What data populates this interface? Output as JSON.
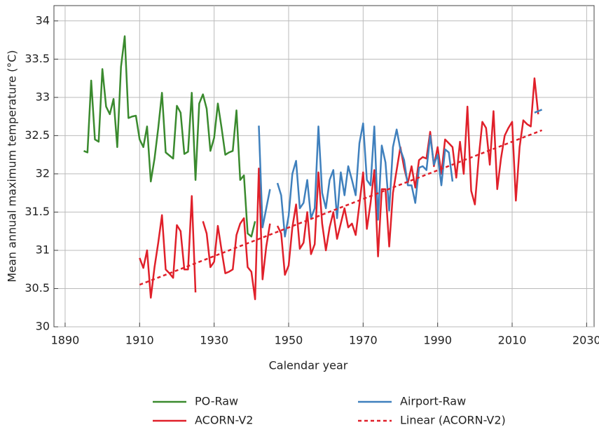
{
  "chart_data": {
    "type": "line",
    "xlabel": "Calendar year",
    "ylabel": "Mean annual maximum temperature (°C)",
    "xlim": [
      1887,
      2032
    ],
    "xticks": [
      1890,
      1910,
      1930,
      1950,
      1970,
      1990,
      2010,
      2030
    ],
    "ylim": [
      30,
      34.2
    ],
    "yticks": [
      30,
      30.5,
      31,
      31.5,
      32,
      32.5,
      33,
      33.5,
      34
    ],
    "grid": true,
    "legend": "bottom",
    "series": [
      {
        "name": "PO-Raw",
        "color": "#3a8a2e",
        "dashed": false,
        "x": [
          1895,
          1896,
          1897,
          1898,
          1899,
          1900,
          1901,
          1902,
          1903,
          1904,
          1905,
          1906,
          1907,
          1908,
          1909,
          1910,
          1911,
          1912,
          1913,
          1914,
          1915,
          1916,
          1917,
          1918,
          1919,
          1920,
          1921,
          1922,
          1923,
          1924,
          1925,
          1926,
          1927,
          1928,
          1929,
          1930,
          1931,
          1932,
          1933,
          1934,
          1935,
          1936,
          1937,
          1938,
          1939,
          1940,
          1941
        ],
        "values": [
          32.3,
          32.28,
          33.22,
          32.45,
          32.42,
          33.37,
          32.88,
          32.78,
          32.98,
          32.35,
          33.4,
          33.8,
          32.73,
          32.75,
          32.76,
          32.45,
          32.35,
          32.62,
          31.9,
          32.2,
          32.6,
          33.06,
          32.28,
          32.24,
          32.2,
          32.89,
          32.8,
          32.26,
          32.29,
          33.06,
          31.92,
          32.92,
          33.04,
          32.85,
          32.3,
          32.47,
          32.92,
          32.6,
          32.25,
          32.28,
          32.3,
          32.83,
          31.92,
          31.98,
          31.22,
          31.18,
          31.38
        ]
      },
      {
        "name": "ACORN-V2",
        "color": "#e0202a",
        "dashed": false,
        "x": [
          1910,
          1911,
          1912,
          1913,
          1914,
          1915,
          1916,
          1917,
          1918,
          1919,
          1920,
          1921,
          1922,
          1923,
          1924,
          1925,
          1926,
          1927,
          1928,
          1929,
          1930,
          1931,
          1932,
          1933,
          1934,
          1935,
          1936,
          1937,
          1938,
          1939,
          1940,
          1941,
          1942,
          1943,
          1944,
          1945,
          1946,
          1947,
          1948,
          1949,
          1950,
          1951,
          1952,
          1953,
          1954,
          1955,
          1956,
          1957,
          1958,
          1959,
          1960,
          1961,
          1962,
          1963,
          1964,
          1965,
          1966,
          1967,
          1968,
          1969,
          1970,
          1971,
          1972,
          1973,
          1974,
          1975,
          1976,
          1977,
          1978,
          1979,
          1980,
          1981,
          1982,
          1983,
          1984,
          1985,
          1986,
          1987,
          1988,
          1989,
          1990,
          1991,
          1992,
          1993,
          1994,
          1995,
          1996,
          1997,
          1998,
          1999,
          2000,
          2001,
          2002,
          2003,
          2004,
          2005,
          2006,
          2007,
          2008,
          2009,
          2010,
          2011,
          2012,
          2013,
          2014,
          2015,
          2016,
          2017
        ],
        "values": [
          30.9,
          30.77,
          31.0,
          30.38,
          30.78,
          31.1,
          31.46,
          30.75,
          30.7,
          30.64,
          31.33,
          31.25,
          30.75,
          30.75,
          31.71,
          30.45,
          null,
          31.38,
          31.22,
          30.78,
          30.85,
          31.32,
          31.0,
          30.7,
          30.72,
          30.75,
          31.2,
          31.35,
          31.42,
          30.78,
          30.72,
          30.36,
          32.07,
          30.62,
          31.05,
          31.35,
          null,
          31.32,
          31.22,
          30.68,
          30.8,
          31.3,
          31.6,
          31.02,
          31.1,
          31.5,
          30.95,
          31.08,
          32.02,
          31.35,
          31.0,
          31.3,
          31.5,
          31.15,
          31.35,
          31.55,
          31.3,
          31.35,
          31.2,
          31.6,
          32.02,
          31.28,
          31.62,
          32.05,
          30.92,
          31.8,
          31.8,
          31.05,
          31.75,
          32.05,
          32.35,
          32.08,
          31.88,
          32.1,
          31.82,
          32.18,
          32.22,
          32.2,
          32.55,
          32.1,
          32.35,
          32.0,
          32.45,
          32.4,
          32.35,
          31.95,
          32.42,
          32.0,
          32.88,
          31.78,
          31.6,
          32.2,
          32.68,
          32.6,
          32.12,
          32.82,
          31.8,
          32.2,
          32.5,
          32.6,
          32.68,
          31.65,
          32.35,
          32.7,
          32.65,
          32.62,
          33.25,
          32.78
        ]
      },
      {
        "name": "Airport-Raw",
        "color": "#3f80bd",
        "dashed": false,
        "x": [
          1942,
          1943,
          1944,
          1945,
          1946,
          1947,
          1948,
          1949,
          1950,
          1951,
          1952,
          1953,
          1954,
          1955,
          1956,
          1957,
          1958,
          1959,
          1960,
          1961,
          1962,
          1963,
          1964,
          1965,
          1966,
          1967,
          1968,
          1969,
          1970,
          1971,
          1972,
          1973,
          1974,
          1975,
          1976,
          1977,
          1978,
          1979,
          1980,
          1981,
          1982,
          1983,
          1984,
          1985,
          1986,
          1987,
          1988,
          1989,
          1990,
          1991,
          1992,
          1993,
          1994,
          1995,
          1996,
          1997,
          1998,
          1999,
          2000,
          2001,
          2002,
          2003,
          2004,
          2005,
          2006,
          2007,
          2008,
          2009,
          2010,
          2011,
          2012,
          2013,
          2014,
          2015,
          2016,
          2017,
          2018
        ],
        "values": [
          32.63,
          31.3,
          31.55,
          31.8,
          null,
          31.88,
          31.72,
          31.18,
          31.45,
          32.0,
          32.17,
          31.55,
          31.62,
          31.92,
          31.42,
          31.55,
          32.62,
          31.75,
          31.55,
          31.92,
          32.05,
          31.42,
          32.02,
          31.72,
          32.1,
          31.92,
          31.72,
          32.4,
          32.66,
          31.92,
          31.85,
          32.62,
          31.4,
          32.37,
          32.15,
          31.52,
          32.35,
          32.58,
          32.32,
          32.18,
          31.85,
          31.85,
          31.62,
          32.08,
          32.1,
          32.05,
          32.5,
          32.12,
          32.25,
          31.85,
          32.32,
          32.28,
          31.9,
          null,
          null,
          null,
          null,
          null,
          null,
          null,
          null,
          null,
          null,
          null,
          null,
          null,
          null,
          null,
          null,
          null,
          null,
          null,
          null,
          null,
          32.8,
          32.82,
          32.84
        ]
      },
      {
        "name": "Linear (ACORN-V2)",
        "color": "#e0202a",
        "dashed": true,
        "x": [
          1910,
          2018
        ],
        "values": [
          30.55,
          32.57
        ]
      }
    ]
  }
}
